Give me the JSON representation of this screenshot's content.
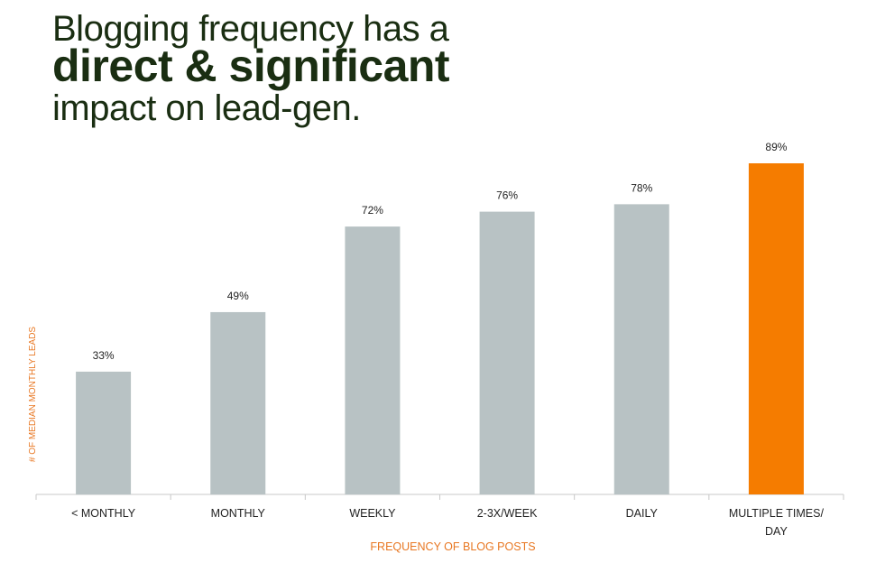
{
  "headline": {
    "line1": "Blogging frequency has a",
    "line2": "direct & significant",
    "line3": "impact on lead-gen."
  },
  "colors": {
    "bar": "#b8c2c4",
    "highlight": "#f57c00",
    "axis_label": "#e87722",
    "text": "#222222",
    "title": "#1a2e12"
  },
  "chart_data": {
    "type": "bar",
    "categories": [
      "< MONTHLY",
      "MONTHLY",
      "WEEKLY",
      "2-3X/WEEK",
      "DAILY",
      "MULTIPLE TIMES/ DAY"
    ],
    "values": [
      33,
      49,
      72,
      76,
      78,
      89
    ],
    "value_labels": [
      "33%",
      "49%",
      "72%",
      "76%",
      "78%",
      "89%"
    ],
    "highlight_index": 5,
    "xlabel": "FREQUENCY OF BLOG POSTS",
    "ylabel": "# OF MEDIAN MONTHLY LEADS",
    "ylim": [
      0,
      100
    ],
    "grid": false,
    "legend": "none"
  }
}
